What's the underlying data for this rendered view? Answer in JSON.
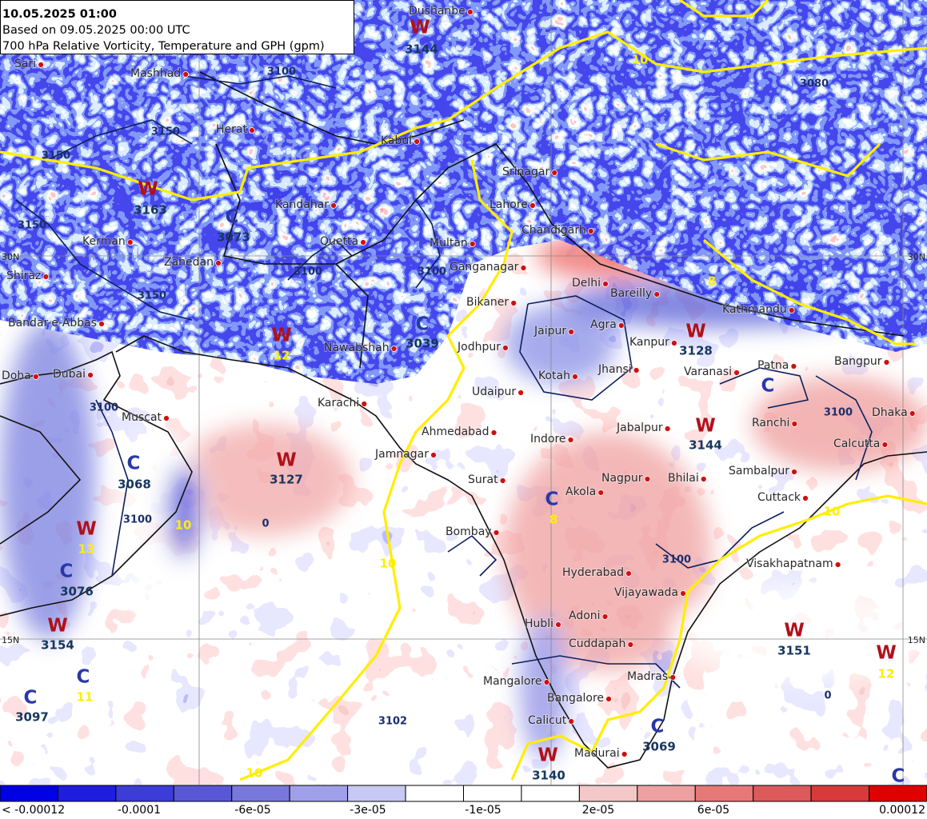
{
  "header": {
    "valid_time": "10.05.2025 01:00",
    "based_on": "Based on 09.05.2025 00:00 UTC",
    "description": "700 hPa Relative Vorticity, Temperature and GPH (gpm)"
  },
  "colorbar": {
    "colors": [
      "#0000e4",
      "#1e1ee0",
      "#3c3cd8",
      "#5858d6",
      "#7878dc",
      "#a0a0ea",
      "#c8c8f4",
      "#ffffff",
      "#ffffff",
      "#ffffff",
      "#f4c8c8",
      "#eea0a0",
      "#e67878",
      "#dc5a5a",
      "#d83a3a",
      "#e00000"
    ],
    "labels": [
      "< -0.00012",
      "-0.0001",
      "-6e-05",
      "-3e-05",
      "-1e-05",
      "2e-05",
      "6e-05",
      "0.00012"
    ]
  },
  "grid_labels": [
    "30N",
    "30N",
    "15N",
    "15N"
  ],
  "cities": [
    "Dushanbe",
    "Sari",
    "Mashhad",
    "Herat",
    "Kabul",
    "Srinagar",
    "Lahore",
    "Kandahar",
    "Chandigarh",
    "Quetta",
    "Multan",
    "Kerman",
    "Zahedan",
    "Shiraz",
    "Ganganagar",
    "Delhi",
    "Bareilly",
    "Bikaner",
    "Kathmandu",
    "Bandar-e-Abbas",
    "Agra",
    "Jaipur",
    "Nawabshah",
    "Kanpur",
    "Jodhpur",
    "Patna",
    "Varanasi",
    "Jhansi",
    "Kotah",
    "Doha",
    "Dubai",
    "Bangpur",
    "Udaipur",
    "Karachi",
    "Muscat",
    "Dhaka",
    "Ranchi",
    "Jabalpur",
    "Ahmedabad",
    "Indore",
    "Calcutta",
    "Jamnagar",
    "Surat",
    "Sambalpur",
    "Nagpur",
    "Bhilai",
    "Akola",
    "Cuttack",
    "Bombay",
    "Visakhapatnam",
    "Hyderabad",
    "Vijayawada",
    "Adoni",
    "Hubli",
    "Cuddapah",
    "Mangalore",
    "Madras",
    "Bangalore",
    "Calicut",
    "Madurai"
  ],
  "systems": [
    {
      "letter": "W",
      "value": 3144
    },
    {
      "letter": "W",
      "value": 3163
    },
    {
      "letter": "C",
      "value": 3073
    },
    {
      "letter": "W",
      "temperature": 12
    },
    {
      "letter": "C",
      "value": 3039
    },
    {
      "letter": "W",
      "value": 3128
    },
    {
      "letter": "W",
      "value": 3127
    },
    {
      "letter": "C",
      "value": 3068
    },
    {
      "letter": "W",
      "value": 3144
    },
    {
      "letter": "C",
      "temperature": 8
    },
    {
      "letter": "W",
      "temperature": 13
    },
    {
      "letter": "C",
      "value": 3076
    },
    {
      "letter": "W",
      "value": 3154
    },
    {
      "letter": "W",
      "value": 3151
    },
    {
      "letter": "W",
      "temperature": 12
    },
    {
      "letter": "C",
      "temperature": 11
    },
    {
      "letter": "C",
      "value": 3097
    },
    {
      "letter": "W",
      "value": 3140
    },
    {
      "letter": "C",
      "value": 3069
    },
    {
      "letter": "C"
    },
    {
      "letter": "C"
    }
  ],
  "gph_labels": [
    3100,
    3150,
    3150,
    3150,
    3100,
    3100,
    3150,
    3100,
    3100,
    3100,
    3100,
    3102,
    3080
  ],
  "temperature_labels": [
    10,
    10,
    10,
    10,
    8,
    10,
    0,
    0
  ]
}
